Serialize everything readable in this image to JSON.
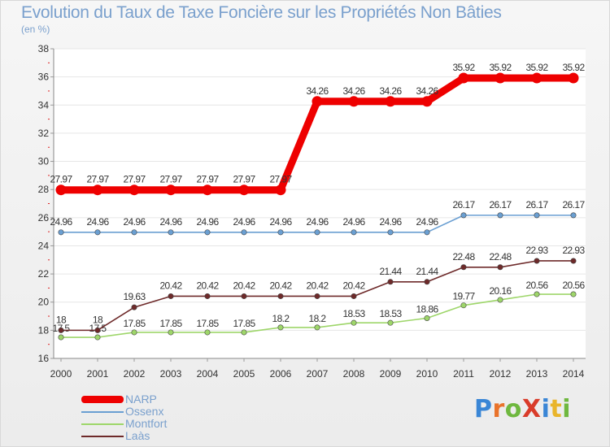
{
  "title": "Evolution du Taux de Taxe Foncière sur les Propriétés Non Bâties",
  "unit": "(en %)",
  "brand": {
    "text": "ProXiti",
    "letters": [
      "P",
      "r",
      "o",
      "X",
      "i",
      "t",
      "i"
    ],
    "letter_colors": [
      "#3a86d6",
      "#e9732b",
      "#6fb83f",
      "#d93c2a",
      "#3a86d6",
      "#e9b52b",
      "#6fb83f"
    ]
  },
  "chart_data": {
    "type": "line",
    "title": "Evolution du Taux de Taxe Foncière sur les Propriétés Non Bâties",
    "ylabel": "(en %)",
    "xlabel": "",
    "ylim": [
      16,
      38
    ],
    "yticks": [
      16,
      18,
      20,
      22,
      24,
      26,
      28,
      30,
      32,
      34,
      36,
      38
    ],
    "categories": [
      "2000",
      "2001",
      "2002",
      "2003",
      "2004",
      "2005",
      "2006",
      "2007",
      "2008",
      "2009",
      "2010",
      "2011",
      "2012",
      "2013",
      "2014"
    ],
    "legend_position": "bottom-left",
    "series": [
      {
        "name": "NARP",
        "color": "#ee0000",
        "values": [
          27.97,
          27.97,
          27.97,
          27.97,
          27.97,
          27.97,
          27.97,
          34.26,
          34.26,
          34.26,
          34.26,
          35.92,
          35.92,
          35.92,
          35.92
        ],
        "labels": [
          "27.97",
          "27.97",
          "27.97",
          "27.97",
          "27.97",
          "27.97",
          "27.97",
          "34.26",
          "34.26",
          "34.26",
          "34.26",
          "35.92",
          "35.92",
          "35.92",
          "35.92"
        ]
      },
      {
        "name": "Ossenx",
        "color": "#6a9fd2",
        "values": [
          24.96,
          24.96,
          24.96,
          24.96,
          24.96,
          24.96,
          24.96,
          24.96,
          24.96,
          24.96,
          24.96,
          26.17,
          26.17,
          26.17,
          26.17
        ],
        "labels": [
          "24.96",
          "24.96",
          "24.96",
          "24.96",
          "24.96",
          "24.96",
          "24.96",
          "24.96",
          "24.96",
          "24.96",
          "24.96",
          "26.17",
          "26.17",
          "26.17",
          "26.17"
        ]
      },
      {
        "name": "Montfort",
        "color": "#9ed66a",
        "values": [
          17.5,
          17.5,
          17.85,
          17.85,
          17.85,
          17.85,
          18.2,
          18.2,
          18.53,
          18.53,
          18.86,
          19.77,
          20.16,
          20.56,
          20.56
        ],
        "labels": [
          "17.5",
          "17.5",
          "17.85",
          "17.85",
          "17.85",
          "17.85",
          "18.2",
          "18.2",
          "18.53",
          "18.53",
          "18.86",
          "19.77",
          "20.16",
          "20.56",
          "20.56"
        ]
      },
      {
        "name": "Laàs",
        "color": "#6e2a2a",
        "values": [
          18,
          18,
          19.63,
          20.42,
          20.42,
          20.42,
          20.42,
          20.42,
          20.42,
          21.44,
          21.44,
          22.48,
          22.48,
          22.93,
          22.93
        ],
        "labels": [
          "18",
          "18",
          "19.63",
          "20.42",
          "20.42",
          "20.42",
          "20.42",
          "20.42",
          "20.42",
          "21.44",
          "21.44",
          "22.48",
          "22.48",
          "22.93",
          "22.93"
        ]
      }
    ]
  }
}
